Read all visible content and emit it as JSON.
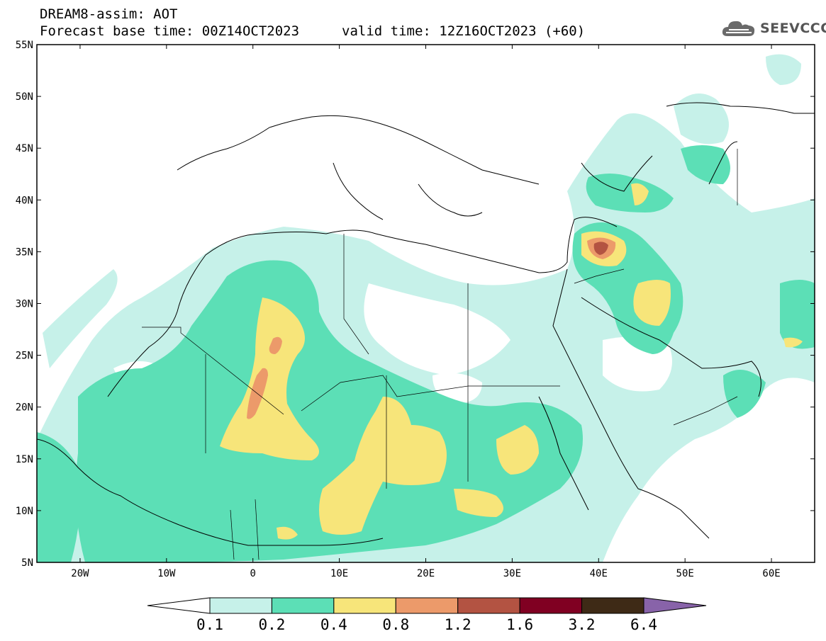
{
  "header": {
    "model_line": "DREAM8-assim: AOT",
    "base_time": "Forecast base time: 00Z14OCT2023",
    "valid_time": "valid time: 12Z16OCT2023 (+60)",
    "logo_text": "SEEVCCC",
    "logo_icon": "cloud-icon"
  },
  "axes": {
    "lat_labels": [
      "55N",
      "50N",
      "45N",
      "40N",
      "35N",
      "30N",
      "25N",
      "20N",
      "15N",
      "10N",
      "5N"
    ],
    "lon_labels": [
      "20W",
      "10W",
      "0",
      "10E",
      "20E",
      "30E",
      "40E",
      "50E",
      "60E"
    ],
    "lat_range": [
      5,
      55
    ],
    "lon_range": [
      -25,
      65
    ]
  },
  "colorbar": {
    "labels": [
      "0.1",
      "0.2",
      "0.4",
      "0.8",
      "1.2",
      "1.6",
      "3.2",
      "6.4"
    ],
    "colors": [
      "#ffffff",
      "#c6f1e9",
      "#5cdfb6",
      "#f7e57a",
      "#ec9a6a",
      "#b35342",
      "#800022",
      "#3e2a16",
      "#8863a9"
    ]
  }
}
